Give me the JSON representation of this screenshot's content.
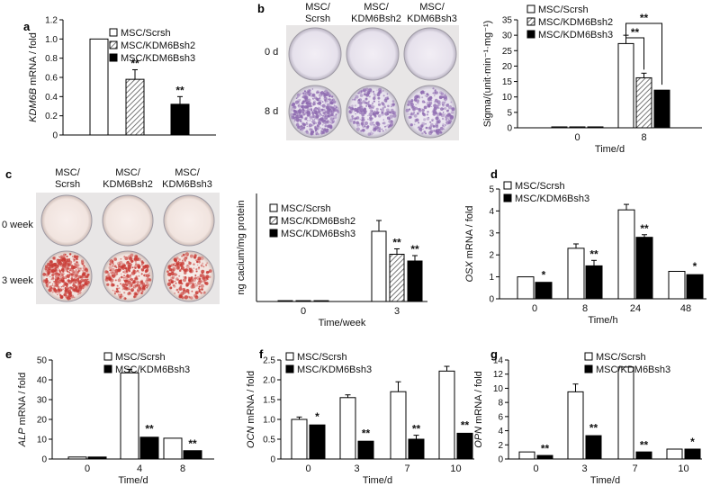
{
  "colors": {
    "scrsh": "#ffffff",
    "kdm2_hatch": "#555555",
    "kdm3": "#000000",
    "violet_plate_bg": "#e9e4ee",
    "violet_stain": "#8e6bb0",
    "red_plate_bg": "#f4e8e4",
    "red_stain": "#c83a34"
  },
  "panel_letters": {
    "a": "a",
    "b": "b",
    "c": "c",
    "d": "d",
    "e": "e",
    "f": "f",
    "g": "g"
  },
  "photos": {
    "b": {
      "col_labels": [
        "MSC/\nScrsh",
        "MSC/\nKDM6Bsh2",
        "MSC/\nKDM6Bsh3"
      ],
      "row_labels": [
        "0 d",
        "8 d"
      ],
      "stain_density": [
        0.95,
        0.55,
        0.5
      ]
    },
    "c": {
      "col_labels": [
        "MSC/\nScrsh",
        "MSC/\nKDM6Bsh2",
        "MSC/\nKDM6Bsh3"
      ],
      "row_labels": [
        "0 week",
        "3 week"
      ],
      "stain_density": [
        0.9,
        0.6,
        0.5
      ]
    }
  },
  "chart_data": [
    {
      "id": "a",
      "type": "bar",
      "ylabel_italic": "KDM6B",
      "ylabel_rest": " mRNA / fold",
      "xlabel": "",
      "ylim": [
        0,
        1.2
      ],
      "yticks": [
        0,
        0.2,
        0.4,
        0.6,
        0.8,
        1.0,
        1.2
      ],
      "ytick_labels": [
        "0",
        "0.2",
        "0.4",
        "0.6",
        "0.8",
        "1.0",
        "1.2"
      ],
      "categories": [
        ""
      ],
      "series": [
        {
          "name": "MSC/Scrsh",
          "style": "white",
          "values": [
            1.0
          ],
          "err": [
            0.01
          ],
          "sig": [
            ""
          ]
        },
        {
          "name": "MSC/KDM6Bsh2",
          "style": "hatch",
          "values": [
            0.58
          ],
          "err": [
            0.1
          ],
          "sig": [
            "**"
          ]
        },
        {
          "name": "MSC/KDM6Bsh3",
          "style": "black",
          "values": [
            0.32
          ],
          "err": [
            0.08
          ],
          "sig": [
            "**"
          ]
        }
      ],
      "legend": "top-right"
    },
    {
      "id": "b",
      "type": "bar",
      "ylabel": "Sigma/(unit·min⁻¹·mg⁻¹)",
      "xlabel": "Time/d",
      "ylim": [
        0,
        35
      ],
      "yticks": [
        0,
        5,
        10,
        15,
        20,
        25,
        30,
        35
      ],
      "ytick_labels": [
        "0",
        "5",
        "10",
        "15",
        "20",
        "25",
        "30",
        "35"
      ],
      "categories": [
        "0",
        "8"
      ],
      "series": [
        {
          "name": "MSC/Scrsh",
          "style": "white",
          "values": [
            0.3,
            27.3
          ],
          "err": [
            0.1,
            2.7
          ],
          "sig": [
            "",
            ""
          ]
        },
        {
          "name": "MSC/KDM6Bsh2",
          "style": "hatch",
          "values": [
            0.3,
            16.2
          ],
          "err": [
            0.1,
            1.5
          ],
          "sig": [
            "",
            ""
          ]
        },
        {
          "name": "MSC/KDM6Bsh3",
          "style": "black",
          "values": [
            0.3,
            12.2
          ],
          "err": [
            0.1,
            0.6
          ],
          "sig": [
            "",
            ""
          ]
        }
      ],
      "brackets": [
        {
          "from": 0,
          "to": 1,
          "category": 1,
          "label": "**"
        },
        {
          "from": 0,
          "to": 2,
          "category": 1,
          "label": "**"
        }
      ],
      "legend": "top-left"
    },
    {
      "id": "c",
      "type": "bar",
      "ylabel": "ng cacium/mg protein",
      "xlabel": "Time/week",
      "ylim": [
        0,
        40
      ],
      "yticks": [],
      "ytick_labels": [],
      "categories": [
        "0",
        "3"
      ],
      "series": [
        {
          "name": "MSC/Scrsh",
          "style": "white",
          "values": [
            0.3,
            26
          ],
          "err": [
            0.1,
            4
          ],
          "sig": [
            "",
            ""
          ]
        },
        {
          "name": "MSC/KDM6Bsh2",
          "style": "hatch",
          "values": [
            0.3,
            17.5
          ],
          "err": [
            0.1,
            2
          ],
          "sig": [
            "",
            "**"
          ]
        },
        {
          "name": "MSC/KDM6Bsh3",
          "style": "black",
          "values": [
            0.3,
            15
          ],
          "err": [
            0.1,
            2
          ],
          "sig": [
            "",
            "**"
          ]
        }
      ],
      "legend": "top-left"
    },
    {
      "id": "d",
      "type": "bar",
      "ylabel_italic": "OSX",
      "ylabel_rest": " mRNA / fold",
      "xlabel": "Time/h",
      "ylim": [
        0,
        5
      ],
      "yticks": [
        0,
        1,
        2,
        3,
        4,
        5
      ],
      "ytick_labels": [
        "0",
        "1",
        "2",
        "3",
        "4",
        "5"
      ],
      "categories": [
        "0",
        "8",
        "24",
        "48"
      ],
      "series": [
        {
          "name": "MSC/Scrsh",
          "style": "white",
          "values": [
            1.0,
            2.3,
            4.05,
            1.25
          ],
          "err": [
            0.02,
            0.2,
            0.25,
            0.05
          ],
          "sig": [
            "",
            "",
            "",
            ""
          ]
        },
        {
          "name": "MSC/KDM6Bsh3",
          "style": "black",
          "values": [
            0.75,
            1.5,
            2.8,
            1.1
          ],
          "err": [
            0.05,
            0.25,
            0.12,
            0.08
          ],
          "sig": [
            "*",
            "**",
            "**",
            "*"
          ]
        }
      ],
      "legend": "top-left"
    },
    {
      "id": "e",
      "type": "bar",
      "ylabel_italic": "ALP",
      "ylabel_rest": " mRNA / fold",
      "xlabel": "Time/d",
      "ylim": [
        0,
        50
      ],
      "yticks": [
        0,
        10,
        20,
        30,
        40,
        50
      ],
      "ytick_labels": [
        "0",
        "10",
        "20",
        "30",
        "40",
        "50"
      ],
      "categories": [
        "0",
        "4",
        "8"
      ],
      "series": [
        {
          "name": "MSC/Scrsh",
          "style": "white",
          "values": [
            1.0,
            43.5,
            10.5
          ],
          "err": [
            0.1,
            1.8,
            0.6
          ],
          "sig": [
            "",
            "",
            ""
          ]
        },
        {
          "name": "MSC/KDM6Bsh3",
          "style": "black",
          "values": [
            1.0,
            11.0,
            4.2
          ],
          "err": [
            0.1,
            1.0,
            0.4
          ],
          "sig": [
            "",
            "**",
            "**"
          ]
        }
      ],
      "legend": "top-right"
    },
    {
      "id": "f",
      "type": "bar",
      "ylabel_italic": "OCN",
      "ylabel_rest": " mRNA / fold",
      "xlabel": "Time/d",
      "ylim": [
        0,
        2.5
      ],
      "yticks": [
        0,
        0.5,
        1.0,
        1.5,
        2.0,
        2.5
      ],
      "ytick_labels": [
        "0",
        "0.5",
        "1.0",
        "1.5",
        "2.0",
        "2.5"
      ],
      "categories": [
        "0",
        "3",
        "7",
        "10"
      ],
      "series": [
        {
          "name": "MSC/Scrsh",
          "style": "white",
          "values": [
            1.0,
            1.55,
            1.7,
            2.22
          ],
          "err": [
            0.06,
            0.07,
            0.25,
            0.12
          ],
          "sig": [
            "",
            "",
            "",
            ""
          ]
        },
        {
          "name": "MSC/KDM6Bsh3",
          "style": "black",
          "values": [
            0.86,
            0.45,
            0.5,
            0.65
          ],
          "err": [
            0.05,
            0.04,
            0.1,
            0.04
          ],
          "sig": [
            "*",
            "**",
            "**",
            "**"
          ]
        }
      ],
      "legend": "top-left"
    },
    {
      "id": "g",
      "type": "bar",
      "ylabel_italic": "OPN",
      "ylabel_rest": " mRNA / fold",
      "xlabel": "Time/d",
      "ylim": [
        0,
        14
      ],
      "yticks": [
        0,
        2,
        4,
        6,
        8,
        10,
        12,
        14
      ],
      "ytick_labels": [
        "0",
        "2",
        "4",
        "6",
        "8",
        "10",
        "12",
        "14"
      ],
      "categories": [
        "0",
        "3",
        "7",
        "10"
      ],
      "series": [
        {
          "name": "MSC/Scrsh",
          "style": "white",
          "values": [
            1.0,
            9.5,
            13.0,
            1.4
          ],
          "err": [
            0.05,
            1.1,
            0.2,
            0.1
          ],
          "sig": [
            "",
            "",
            "",
            ""
          ]
        },
        {
          "name": "MSC/KDM6Bsh3",
          "style": "black",
          "values": [
            0.5,
            3.3,
            1.0,
            1.4
          ],
          "err": [
            0.05,
            0.2,
            0.1,
            0.15
          ],
          "sig": [
            "**",
            "**",
            "**",
            "*"
          ]
        }
      ],
      "legend": "top-right"
    }
  ]
}
